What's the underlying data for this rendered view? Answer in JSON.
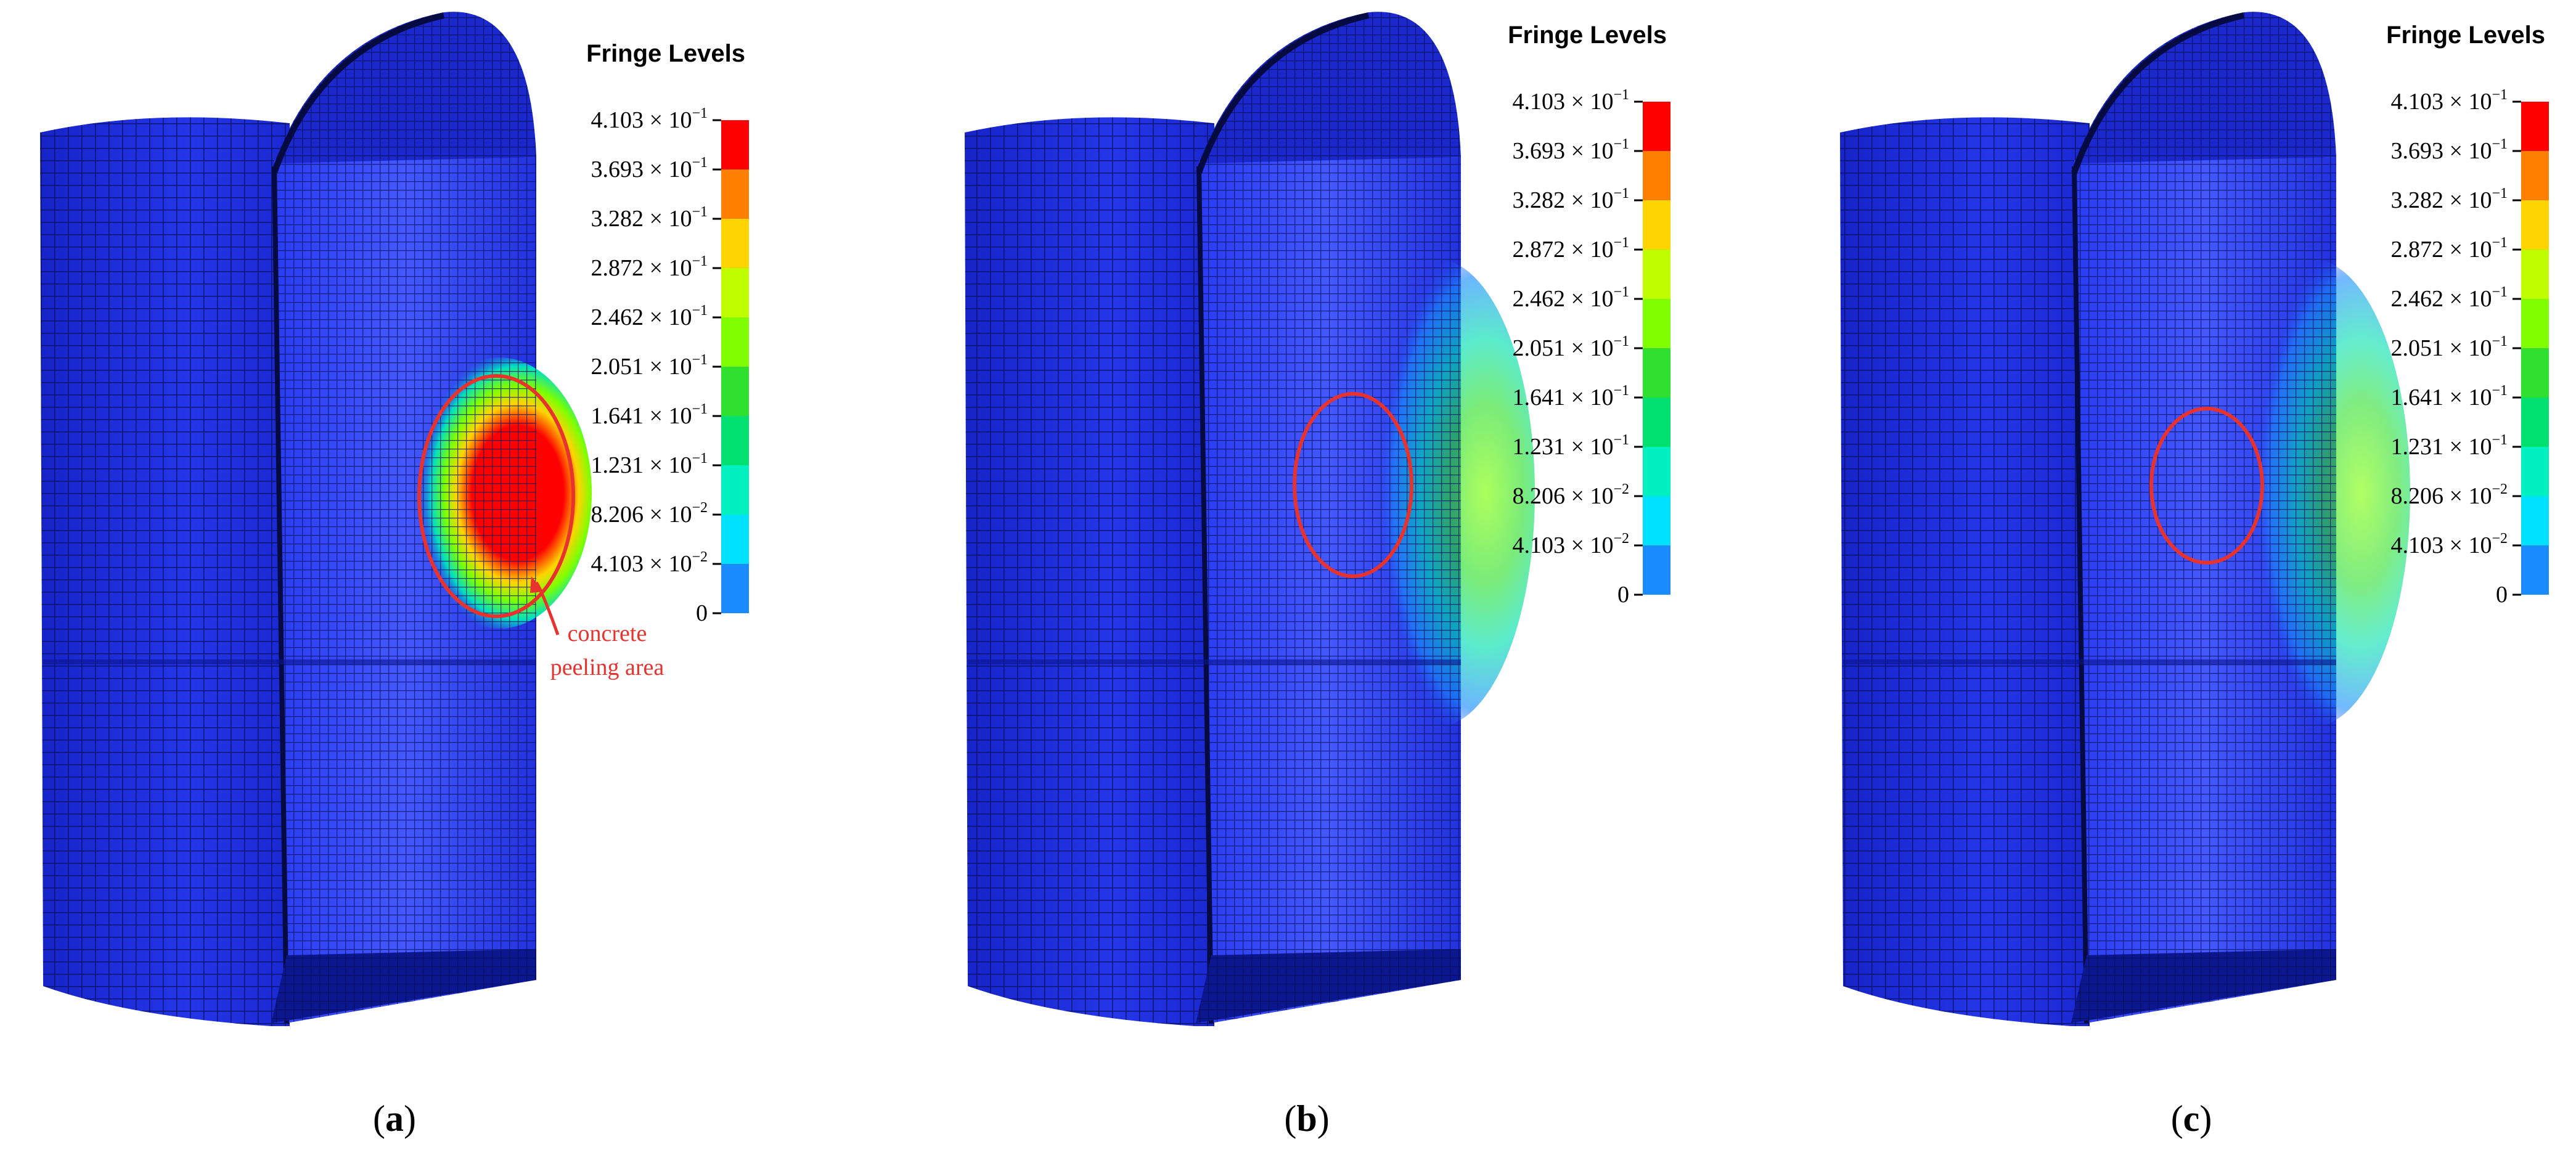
{
  "legend": {
    "title": "Fringe Levels",
    "levels": [
      {
        "mantissa": "4.103",
        "exp": "−1",
        "color": "#ff0000"
      },
      {
        "mantissa": "3.693",
        "exp": "−1",
        "color": "#ff7f00"
      },
      {
        "mantissa": "3.282",
        "exp": "−1",
        "color": "#ffd400"
      },
      {
        "mantissa": "2.872",
        "exp": "−1",
        "color": "#bfff00"
      },
      {
        "mantissa": "2.462",
        "exp": "−1",
        "color": "#7fff00"
      },
      {
        "mantissa": "2.051",
        "exp": "−1",
        "color": "#2fe02f"
      },
      {
        "mantissa": "1.641",
        "exp": "−1",
        "color": "#00e070"
      },
      {
        "mantissa": "1.231",
        "exp": "−1",
        "color": "#00f0c0"
      },
      {
        "mantissa": "8.206",
        "exp": "−2",
        "color": "#00e0ff"
      },
      {
        "mantissa": "4.103",
        "exp": "−2",
        "color": "#1a8cff"
      },
      {
        "mantissa": "0",
        "exp": "",
        "color": "#0000ff"
      }
    ]
  },
  "panels": [
    {
      "open": "(",
      "letter": "a",
      "close": ")",
      "peel_intensity": 1.0
    },
    {
      "open": "(",
      "letter": "b",
      "close": ")",
      "peel_intensity": 0.45
    },
    {
      "open": "(",
      "letter": "c",
      "close": ")",
      "peel_intensity": 0.4
    }
  ],
  "annotation": {
    "line1": "concrete",
    "line2": "peeling area"
  },
  "colors": {
    "mesh_base": "#1e2ee0",
    "mesh_dark": "#0c168f",
    "mesh_line": "#081060",
    "highlight_circle": "#e8322e"
  }
}
